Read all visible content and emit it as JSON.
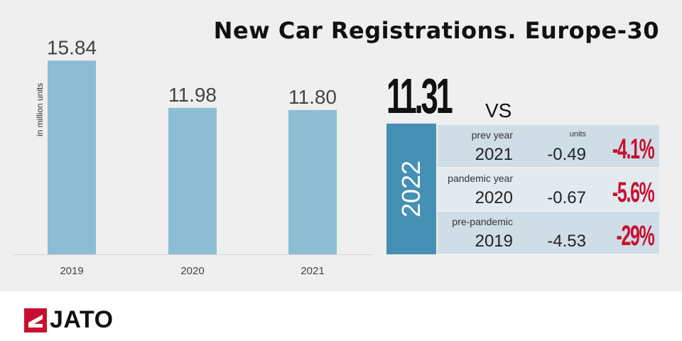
{
  "title": "New Car Registrations. Europe-30",
  "chart_data": {
    "type": "bar",
    "categories": [
      "2019",
      "2020",
      "2021"
    ],
    "values": [
      15.84,
      11.98,
      11.8
    ],
    "data_labels": [
      "15.84",
      "11.98",
      "11.80"
    ],
    "ylabel": "in million units",
    "xlabel": "",
    "ylim": [
      0,
      16.5
    ],
    "grid": false,
    "bar_color": "#8cbdd3"
  },
  "comparison": {
    "headline_value": "11.31",
    "vs_label": "VS",
    "year": "2022",
    "units_label": "units",
    "rows": [
      {
        "label": "prev year",
        "year": "2021",
        "diff": "-0.49",
        "pct": "-4.1%"
      },
      {
        "label": "pandemic year",
        "year": "2020",
        "diff": "-0.67",
        "pct": "-5.6%"
      },
      {
        "label": "pre-pandemic",
        "year": "2019",
        "diff": "-4.53",
        "pct": "-29%"
      }
    ],
    "accent_color": "#4590b4",
    "negative_color": "#c8102e"
  },
  "brand": {
    "name": "JATO",
    "logo_icon": "jato-logo-icon",
    "logo_color": "#c8102e"
  }
}
